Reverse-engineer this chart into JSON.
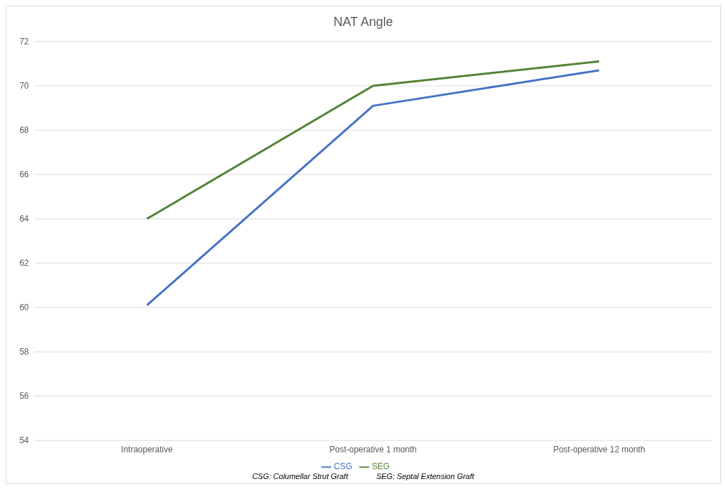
{
  "chart_data": {
    "type": "line",
    "title": "NAT Angle",
    "categories": [
      "Intraoperative",
      "Post-operative 1 month",
      "Post-operative 12 month"
    ],
    "series": [
      {
        "name": "CSG",
        "color": "#4472c4",
        "values": [
          60.1,
          69.1,
          70.7
        ]
      },
      {
        "name": "SEG",
        "color": "#548235",
        "values": [
          64.0,
          70.0,
          71.1
        ]
      }
    ],
    "ylim": [
      54,
      72
    ],
    "yticks": [
      54,
      56,
      58,
      60,
      62,
      64,
      66,
      68,
      70,
      72
    ],
    "grid": "y",
    "legend": "bottom",
    "marker": "none",
    "line_style": "solid",
    "annotations": [
      "CSG: Columellar Strut Graft",
      "SEG: Septal Extension Graft"
    ]
  }
}
